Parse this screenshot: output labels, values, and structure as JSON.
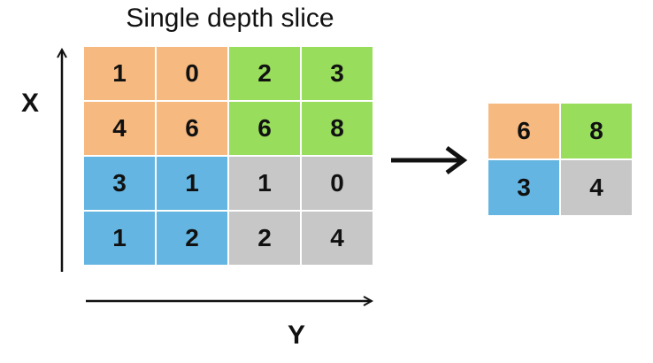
{
  "title": "Single depth slice",
  "axes": {
    "x_label": "X",
    "y_label": "Y"
  },
  "colors": {
    "orange": "#f6b97f",
    "green": "#98dd5c",
    "blue": "#64b5e1",
    "gray": "#c7c7c7"
  },
  "input_grid": [
    [
      {
        "value": "1",
        "color": "orange"
      },
      {
        "value": "0",
        "color": "orange"
      },
      {
        "value": "2",
        "color": "green"
      },
      {
        "value": "3",
        "color": "green"
      }
    ],
    [
      {
        "value": "4",
        "color": "orange"
      },
      {
        "value": "6",
        "color": "orange"
      },
      {
        "value": "6",
        "color": "green"
      },
      {
        "value": "8",
        "color": "green"
      }
    ],
    [
      {
        "value": "3",
        "color": "blue"
      },
      {
        "value": "1",
        "color": "blue"
      },
      {
        "value": "1",
        "color": "gray"
      },
      {
        "value": "0",
        "color": "gray"
      }
    ],
    [
      {
        "value": "1",
        "color": "blue"
      },
      {
        "value": "2",
        "color": "blue"
      },
      {
        "value": "2",
        "color": "gray"
      },
      {
        "value": "4",
        "color": "gray"
      }
    ]
  ],
  "output_grid": [
    [
      {
        "value": "6",
        "color": "orange"
      },
      {
        "value": "8",
        "color": "green"
      }
    ],
    [
      {
        "value": "3",
        "color": "blue"
      },
      {
        "value": "4",
        "color": "gray"
      }
    ]
  ]
}
